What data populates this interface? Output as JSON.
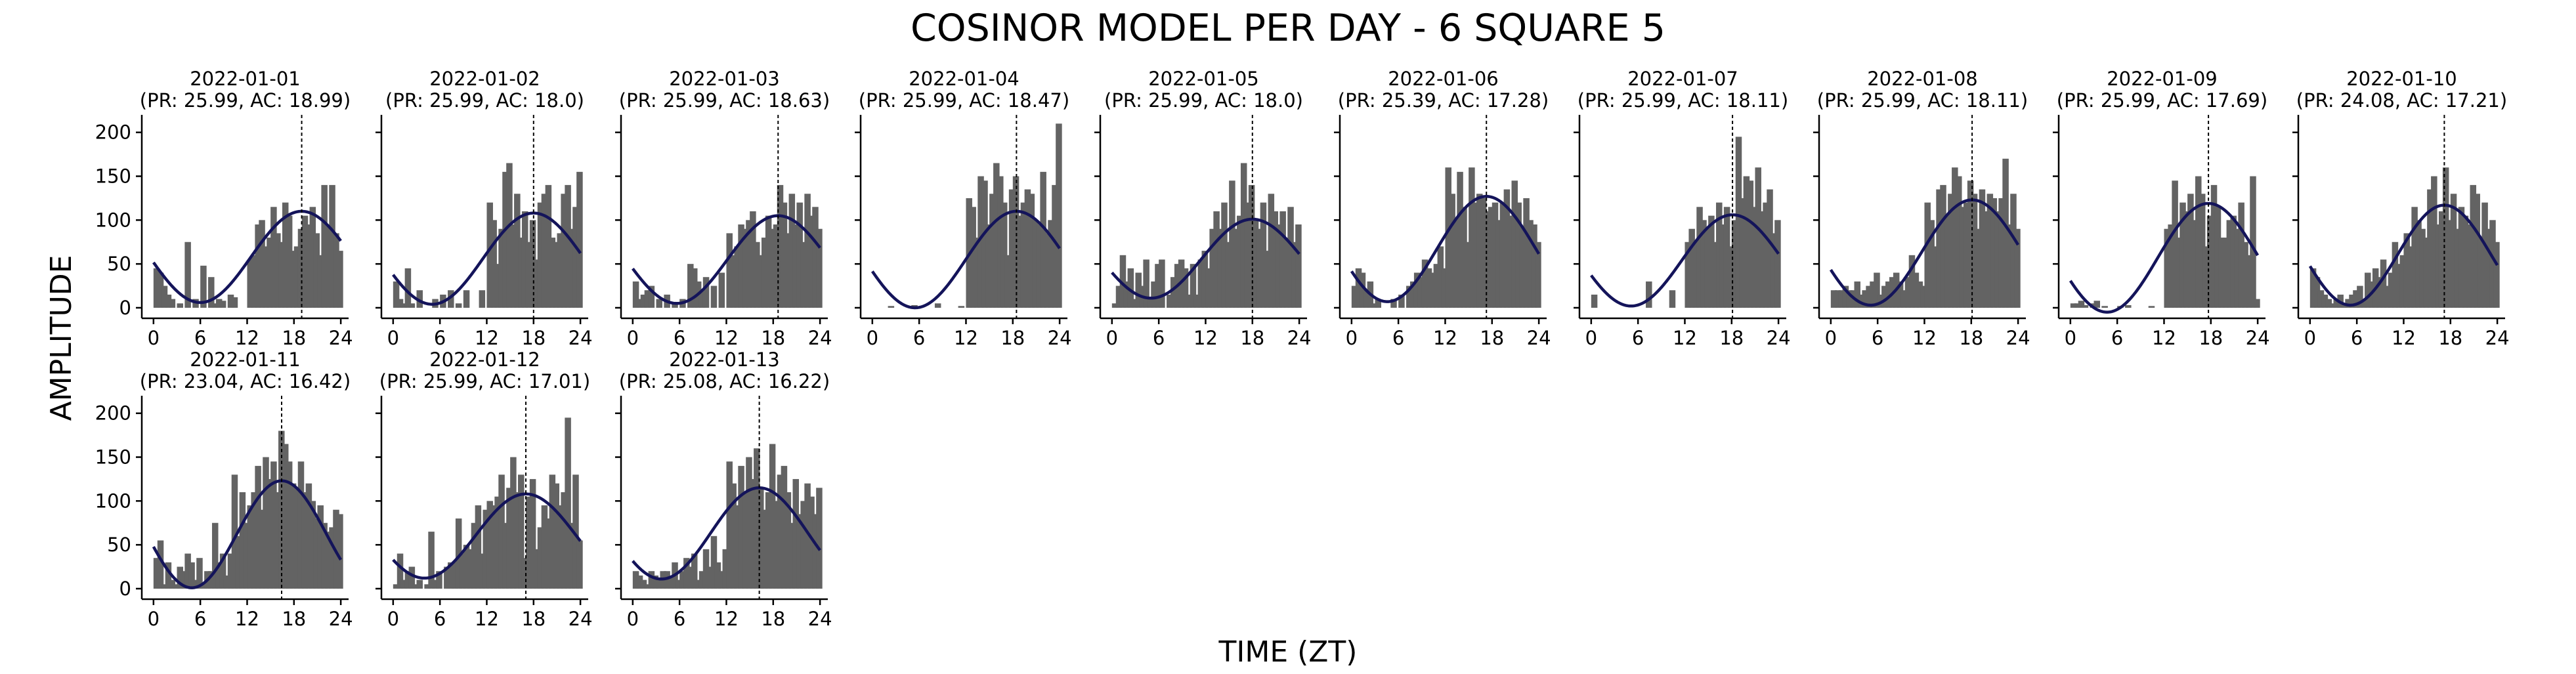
{
  "chart_data": {
    "type": "bar",
    "title": "COSINOR MODEL PER DAY - 6 SQUARE 5",
    "xlabel": "TIME (ZT)",
    "ylabel": "AMPLITUDE",
    "xlim": [
      -1.5,
      25
    ],
    "ylim": [
      -12,
      220
    ],
    "xticks": [
      0,
      6,
      12,
      18,
      24
    ],
    "yticks": [
      0,
      50,
      100,
      150,
      200
    ],
    "bar_width_hours": 0.8,
    "colors": {
      "bars": "#636363",
      "fit": "#14145a",
      "acrophase": "#000000"
    },
    "panels": [
      {
        "date": "2022-01-01",
        "subtitle": "(PR: 25.99, AC: 18.99)",
        "period": 25.99,
        "acrophase": 18.99,
        "mesor": 58,
        "amplitude": 52,
        "x": [
          0,
          0.5,
          1,
          1.5,
          2,
          3,
          4,
          4.5,
          5,
          6,
          7,
          7.5,
          8,
          8.5,
          9.5,
          10,
          11,
          12,
          12.5,
          13,
          13.5,
          14,
          14.5,
          15,
          15.5,
          16,
          16.5,
          17,
          17.5,
          18,
          18.5,
          19,
          19.5,
          20,
          20.5,
          21,
          21.5,
          22,
          22.5,
          23,
          23.5
        ],
        "values": [
          45,
          40,
          25,
          15,
          10,
          5,
          75,
          0,
          10,
          48,
          35,
          5,
          10,
          8,
          15,
          12,
          0,
          55,
          60,
          95,
          100,
          70,
          80,
          115,
          85,
          75,
          120,
          105,
          65,
          70,
          90,
          105,
          95,
          115,
          85,
          60,
          140,
          95,
          140,
          85,
          65
        ]
      },
      {
        "date": "2022-01-02",
        "subtitle": "(PR: 25.99, AC: 18.0)",
        "period": 25.99,
        "acrophase": 18.0,
        "mesor": 56,
        "amplitude": 52,
        "x": [
          0,
          0.5,
          1,
          1.5,
          2,
          3,
          4,
          5,
          6,
          7,
          8,
          9,
          10,
          11,
          12,
          12.5,
          13,
          13.5,
          14,
          14.5,
          15,
          15.5,
          16,
          16.5,
          17,
          17.5,
          18,
          18.5,
          19,
          19.5,
          20,
          20.5,
          21,
          21.5,
          22,
          22.5,
          23,
          23.5
        ],
        "values": [
          30,
          10,
          5,
          45,
          5,
          20,
          0,
          10,
          15,
          20,
          5,
          20,
          0,
          20,
          120,
          100,
          50,
          90,
          155,
          165,
          95,
          130,
          80,
          110,
          75,
          100,
          55,
          120,
          130,
          140,
          80,
          75,
          85,
          130,
          140,
          90,
          115,
          155
        ]
      },
      {
        "date": "2022-01-03",
        "subtitle": "(PR: 25.99, AC: 18.63)",
        "period": 25.99,
        "acrophase": 18.63,
        "mesor": 55,
        "amplitude": 50,
        "x": [
          0,
          0.5,
          1,
          1.5,
          2,
          3,
          4,
          5,
          6,
          7,
          7.5,
          8,
          8.5,
          9,
          10,
          11,
          12,
          12.5,
          13,
          13.5,
          14,
          14.5,
          15,
          15.5,
          16,
          16.5,
          17,
          17.5,
          18,
          18.5,
          19,
          19.5,
          20,
          20.5,
          21,
          21.5,
          22,
          22.5,
          23,
          23.5
        ],
        "values": [
          30,
          10,
          15,
          20,
          25,
          10,
          15,
          5,
          10,
          50,
          45,
          30,
          20,
          35,
          25,
          40,
          85,
          60,
          70,
          95,
          90,
          100,
          110,
          75,
          60,
          80,
          105,
          90,
          95,
          140,
          120,
          85,
          130,
          95,
          120,
          75,
          130,
          105,
          115,
          90
        ]
      },
      {
        "date": "2022-01-04",
        "subtitle": "(PR: 25.99, AC: 18.47)",
        "period": 25.99,
        "acrophase": 18.47,
        "mesor": 55,
        "amplitude": 55,
        "x": [
          2,
          3,
          4,
          5,
          6,
          7,
          8,
          9,
          10,
          11,
          12,
          12.5,
          13,
          13.5,
          14,
          14.5,
          15,
          15.5,
          16,
          16.5,
          17,
          17.5,
          18,
          18.5,
          19,
          19.5,
          20,
          20.5,
          21,
          21.5,
          22,
          22.5,
          23,
          23.5
        ],
        "values": [
          2,
          0,
          0,
          3,
          0,
          0,
          5,
          0,
          0,
          2,
          125,
          115,
          80,
          150,
          145,
          95,
          130,
          165,
          150,
          120,
          60,
          135,
          150,
          105,
          120,
          135,
          130,
          100,
          95,
          155,
          85,
          100,
          140,
          210
        ]
      },
      {
        "date": "2022-01-05",
        "subtitle": "(PR: 25.99, AC: 18.0)",
        "period": 25.99,
        "acrophase": 18.0,
        "mesor": 56,
        "amplitude": 45,
        "x": [
          0,
          0.5,
          1,
          1.5,
          2,
          2.5,
          3,
          3.5,
          4,
          4.5,
          5,
          5.5,
          6,
          6.5,
          7,
          7.5,
          8,
          8.5,
          9,
          9.5,
          10,
          10.5,
          11,
          11.5,
          12,
          12.5,
          13,
          13.5,
          14,
          14.5,
          15,
          15.5,
          16,
          16.5,
          17,
          17.5,
          18,
          18.5,
          19,
          19.5,
          20,
          20.5,
          21,
          21.5,
          22,
          22.5,
          23,
          23.5
        ],
        "values": [
          5,
          25,
          60,
          30,
          45,
          10,
          40,
          25,
          55,
          10,
          30,
          50,
          55,
          0,
          15,
          35,
          50,
          55,
          45,
          15,
          50,
          15,
          55,
          65,
          45,
          90,
          110,
          90,
          120,
          75,
          145,
          90,
          105,
          165,
          120,
          140,
          100,
          90,
          120,
          65,
          130,
          110,
          95,
          110,
          80,
          115,
          75,
          95
        ]
      },
      {
        "date": "2022-01-06",
        "subtitle": "(PR: 25.39, AC: 17.28)",
        "period": 25.39,
        "acrophase": 17.28,
        "mesor": 67,
        "amplitude": 60,
        "x": [
          0,
          0.5,
          1,
          1.5,
          2,
          2.5,
          3,
          4,
          5,
          6,
          7,
          7.5,
          8,
          8.5,
          9,
          9.5,
          10,
          10.5,
          11,
          11.5,
          12,
          12.5,
          13,
          13.5,
          14,
          14.5,
          15,
          15.5,
          16,
          16.5,
          17,
          17.5,
          18,
          18.5,
          19,
          19.5,
          20,
          20.5,
          21,
          21.5,
          22,
          22.5,
          23,
          23.5
        ],
        "values": [
          25,
          45,
          40,
          20,
          30,
          5,
          10,
          0,
          10,
          15,
          25,
          30,
          40,
          35,
          55,
          45,
          40,
          50,
          70,
          45,
          160,
          130,
          100,
          155,
          115,
          75,
          160,
          120,
          130,
          125,
          110,
          115,
          120,
          100,
          120,
          135,
          105,
          145,
          120,
          90,
          125,
          100,
          95,
          75
        ]
      },
      {
        "date": "2022-01-07",
        "subtitle": "(PR: 25.99, AC: 18.11)",
        "period": 25.99,
        "acrophase": 18.11,
        "mesor": 54,
        "amplitude": 52,
        "x": [
          0,
          1,
          2,
          3,
          4,
          5,
          6,
          7,
          8,
          9,
          10,
          11,
          12,
          12.5,
          13,
          13.5,
          14,
          14.5,
          15,
          15.5,
          16,
          16.5,
          17,
          17.5,
          18,
          18.5,
          19,
          19.5,
          20,
          20.5,
          21,
          21.5,
          22,
          22.5,
          23,
          23.5
        ],
        "values": [
          15,
          0,
          0,
          0,
          0,
          0,
          0,
          30,
          0,
          0,
          20,
          0,
          75,
          90,
          75,
          115,
          100,
          90,
          105,
          75,
          120,
          95,
          115,
          70,
          100,
          195,
          125,
          150,
          145,
          115,
          160,
          110,
          120,
          135,
          85,
          100
        ]
      },
      {
        "date": "2022-01-08",
        "subtitle": "(PR: 25.99, AC: 18.11)",
        "period": 25.99,
        "acrophase": 18.11,
        "mesor": 63,
        "amplitude": 60,
        "x": [
          0,
          0.5,
          1,
          1.5,
          2,
          2.5,
          3,
          3.5,
          4,
          4.5,
          5,
          5.5,
          6,
          6.5,
          7,
          7.5,
          8,
          8.5,
          9,
          9.5,
          10,
          10.5,
          11,
          11.5,
          12,
          12.5,
          13,
          13.5,
          14,
          14.5,
          15,
          15.5,
          16,
          16.5,
          17,
          17.5,
          18,
          18.5,
          19,
          19.5,
          20,
          20.5,
          21,
          21.5,
          22,
          22.5,
          23,
          23.5
        ],
        "values": [
          20,
          20,
          20,
          25,
          20,
          20,
          30,
          15,
          20,
          25,
          30,
          40,
          15,
          25,
          30,
          35,
          40,
          30,
          20,
          35,
          60,
          40,
          30,
          25,
          120,
          100,
          70,
          135,
          140,
          105,
          130,
          160,
          150,
          115,
          120,
          145,
          130,
          90,
          135,
          110,
          130,
          125,
          110,
          125,
          170,
          95,
          130,
          90
        ]
      },
      {
        "date": "2022-01-09",
        "subtitle": "(PR: 25.99, AC: 17.69)",
        "period": 25.99,
        "acrophase": 17.69,
        "mesor": 57,
        "amplitude": 62,
        "x": [
          0,
          0.5,
          1,
          1.5,
          2,
          2.5,
          3,
          4,
          5,
          6,
          7,
          8,
          9,
          10,
          11,
          12,
          12.5,
          13,
          13.5,
          14,
          14.5,
          15,
          15.5,
          16,
          16.5,
          17,
          17.5,
          18,
          18.5,
          19,
          19.5,
          20,
          20.5,
          21,
          21.5,
          22,
          22.5,
          23,
          23.5
        ],
        "values": [
          5,
          5,
          8,
          3,
          0,
          5,
          8,
          2,
          0,
          2,
          3,
          0,
          0,
          2,
          0,
          90,
          95,
          145,
          80,
          120,
          110,
          130,
          100,
          150,
          130,
          70,
          105,
          140,
          115,
          80,
          80,
          100,
          105,
          90,
          120,
          75,
          60,
          150,
          10
        ]
      },
      {
        "date": "2022-01-10",
        "subtitle": "(PR: 24.08, AC: 17.21)",
        "period": 24.08,
        "acrophase": 17.21,
        "mesor": 60,
        "amplitude": 57,
        "x": [
          0,
          0.5,
          1,
          1.5,
          2,
          2.5,
          3,
          3.5,
          4,
          4.5,
          5,
          5.5,
          6,
          6.5,
          7,
          7.5,
          8,
          8.5,
          9,
          9.5,
          10,
          10.5,
          11,
          11.5,
          12,
          12.5,
          13,
          13.5,
          14,
          14.5,
          15,
          15.5,
          16,
          16.5,
          17,
          17.5,
          18,
          18.5,
          19,
          19.5,
          20,
          20.5,
          21,
          21.5,
          22,
          22.5,
          23,
          23.5
        ],
        "values": [
          45,
          35,
          20,
          15,
          10,
          5,
          10,
          15,
          5,
          10,
          15,
          20,
          25,
          10,
          40,
          30,
          45,
          35,
          55,
          25,
          40,
          75,
          50,
          60,
          85,
          70,
          115,
          100,
          90,
          80,
          135,
          150,
          95,
          110,
          160,
          100,
          130,
          90,
          115,
          105,
          95,
          140,
          130,
          80,
          120,
          90,
          100,
          75
        ]
      },
      {
        "date": "2022-01-11",
        "subtitle": "(PR: 23.04, AC: 16.42)",
        "period": 23.04,
        "acrophase": 16.42,
        "mesor": 62,
        "amplitude": 61,
        "x": [
          0,
          0.5,
          1,
          1.5,
          2,
          2.5,
          3,
          3.5,
          4,
          4.5,
          5,
          5.5,
          6,
          6.5,
          7,
          7.5,
          8,
          8.5,
          9,
          9.5,
          10,
          10.5,
          11,
          11.5,
          12,
          12.5,
          13,
          13.5,
          14,
          14.5,
          15,
          15.5,
          16,
          16.5,
          17,
          17.5,
          18,
          18.5,
          19,
          19.5,
          20,
          20.5,
          21,
          21.5,
          22,
          22.5,
          23,
          23.5
        ],
        "values": [
          35,
          55,
          5,
          30,
          10,
          5,
          25,
          20,
          40,
          30,
          10,
          35,
          5,
          20,
          20,
          75,
          30,
          40,
          15,
          40,
          130,
          60,
          110,
          75,
          95,
          110,
          140,
          90,
          150,
          125,
          145,
          110,
          180,
          165,
          145,
          120,
          115,
          145,
          110,
          120,
          100,
          80,
          95,
          75,
          65,
          70,
          90,
          85
        ]
      },
      {
        "date": "2022-01-12",
        "subtitle": "(PR: 25.99, AC: 17.01)",
        "period": 25.99,
        "acrophase": 17.01,
        "mesor": 60,
        "amplitude": 48,
        "x": [
          0,
          0.5,
          1,
          1.5,
          2,
          2.5,
          3,
          3.5,
          4,
          4.5,
          5,
          5.5,
          6,
          6.5,
          7,
          7.5,
          8,
          8.5,
          9,
          9.5,
          10,
          10.5,
          11,
          11.5,
          12,
          12.5,
          13,
          13.5,
          14,
          14.5,
          15,
          15.5,
          16,
          16.5,
          17,
          17.5,
          18,
          18.5,
          19,
          19.5,
          20,
          20.5,
          21,
          21.5,
          22,
          22.5,
          23,
          23.5
        ],
        "values": [
          5,
          40,
          10,
          20,
          25,
          5,
          10,
          0,
          5,
          65,
          10,
          20,
          0,
          25,
          30,
          30,
          80,
          40,
          50,
          45,
          75,
          95,
          40,
          90,
          100,
          95,
          105,
          130,
          75,
          115,
          150,
          110,
          130,
          35,
          105,
          125,
          45,
          70,
          95,
          80,
          130,
          120,
          95,
          110,
          195,
          75,
          130,
          55
        ]
      },
      {
        "date": "2022-01-13",
        "subtitle": "(PR: 25.08, AC: 16.22)",
        "period": 25.08,
        "acrophase": 16.22,
        "mesor": 63,
        "amplitude": 52,
        "x": [
          0,
          0.5,
          1,
          1.5,
          2,
          2.5,
          3,
          3.5,
          4,
          4.5,
          5,
          5.5,
          6,
          6.5,
          7,
          7.5,
          8,
          8.5,
          9,
          9.5,
          10,
          10.5,
          11,
          11.5,
          12,
          12.5,
          13,
          13.5,
          14,
          14.5,
          15,
          15.5,
          16,
          16.5,
          17,
          17.5,
          18,
          18.5,
          19,
          19.5,
          20,
          20.5,
          21,
          21.5,
          22,
          22.5,
          23,
          23.5
        ],
        "values": [
          20,
          15,
          10,
          5,
          20,
          15,
          10,
          20,
          20,
          15,
          30,
          10,
          20,
          35,
          25,
          40,
          10,
          20,
          45,
          25,
          60,
          30,
          20,
          45,
          145,
          120,
          95,
          140,
          110,
          150,
          125,
          160,
          115,
          90,
          110,
          165,
          100,
          130,
          140,
          110,
          75,
          125,
          85,
          100,
          120,
          105,
          85,
          115
        ]
      }
    ]
  }
}
